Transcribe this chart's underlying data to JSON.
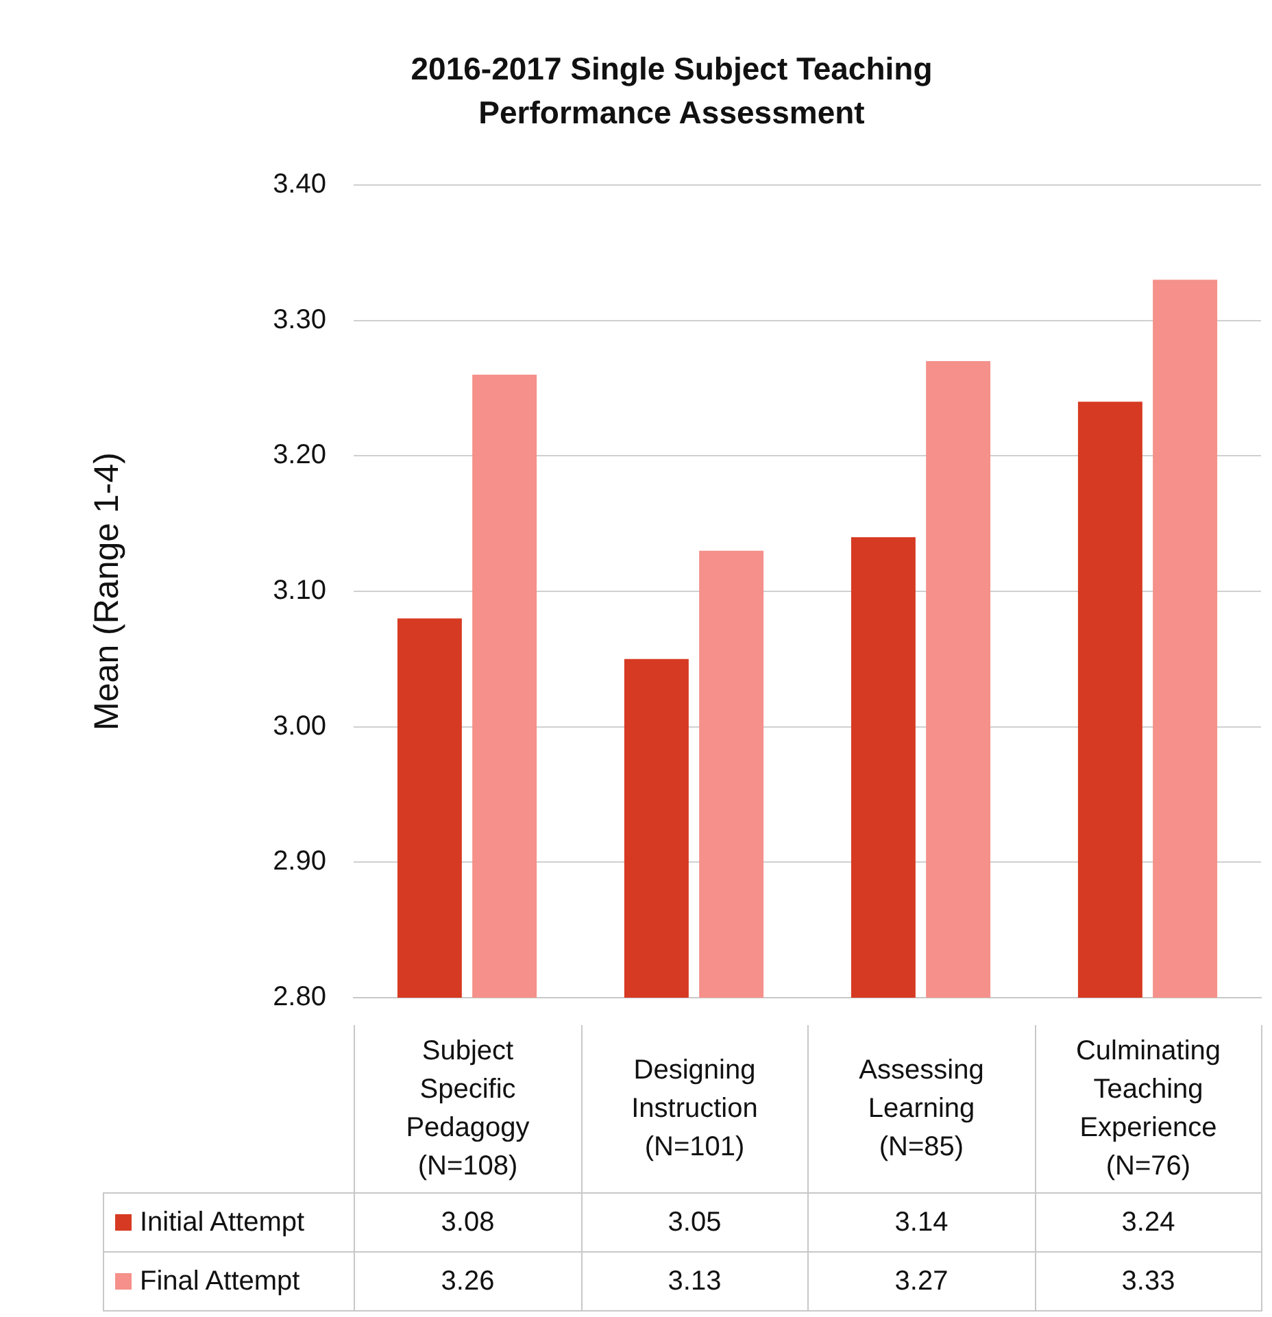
{
  "chart_data": {
    "type": "bar",
    "title": "2016-2017 Single Subject Teaching Performance Assessment",
    "ylabel": "Mean (Range 1-4)",
    "categories": [
      "Subject Specific Pedagogy (N=108)",
      "Designing Instruction (N=101)",
      "Assessing Learning (N=85)",
      "Culminating Teaching Experience (N=76)"
    ],
    "series": [
      {
        "name": "Initial Attempt",
        "color": "#d63a22",
        "values": [
          3.08,
          3.05,
          3.14,
          3.24
        ]
      },
      {
        "name": "Final Attempt",
        "color": "#f5908a",
        "values": [
          3.26,
          3.13,
          3.27,
          3.33
        ]
      }
    ],
    "ylim": [
      2.8,
      3.4
    ],
    "yticks": [
      {
        "value": 2.8,
        "label": "2.80"
      },
      {
        "value": 2.9,
        "label": "2.90"
      },
      {
        "value": 3.0,
        "label": "3.00"
      },
      {
        "value": 3.1,
        "label": "3.10"
      },
      {
        "value": 3.2,
        "label": "3.20"
      },
      {
        "value": 3.3,
        "label": "3.30"
      },
      {
        "value": 3.4,
        "label": "3.40"
      }
    ],
    "grid": "y",
    "legend": "bottom",
    "data_labels": true
  }
}
